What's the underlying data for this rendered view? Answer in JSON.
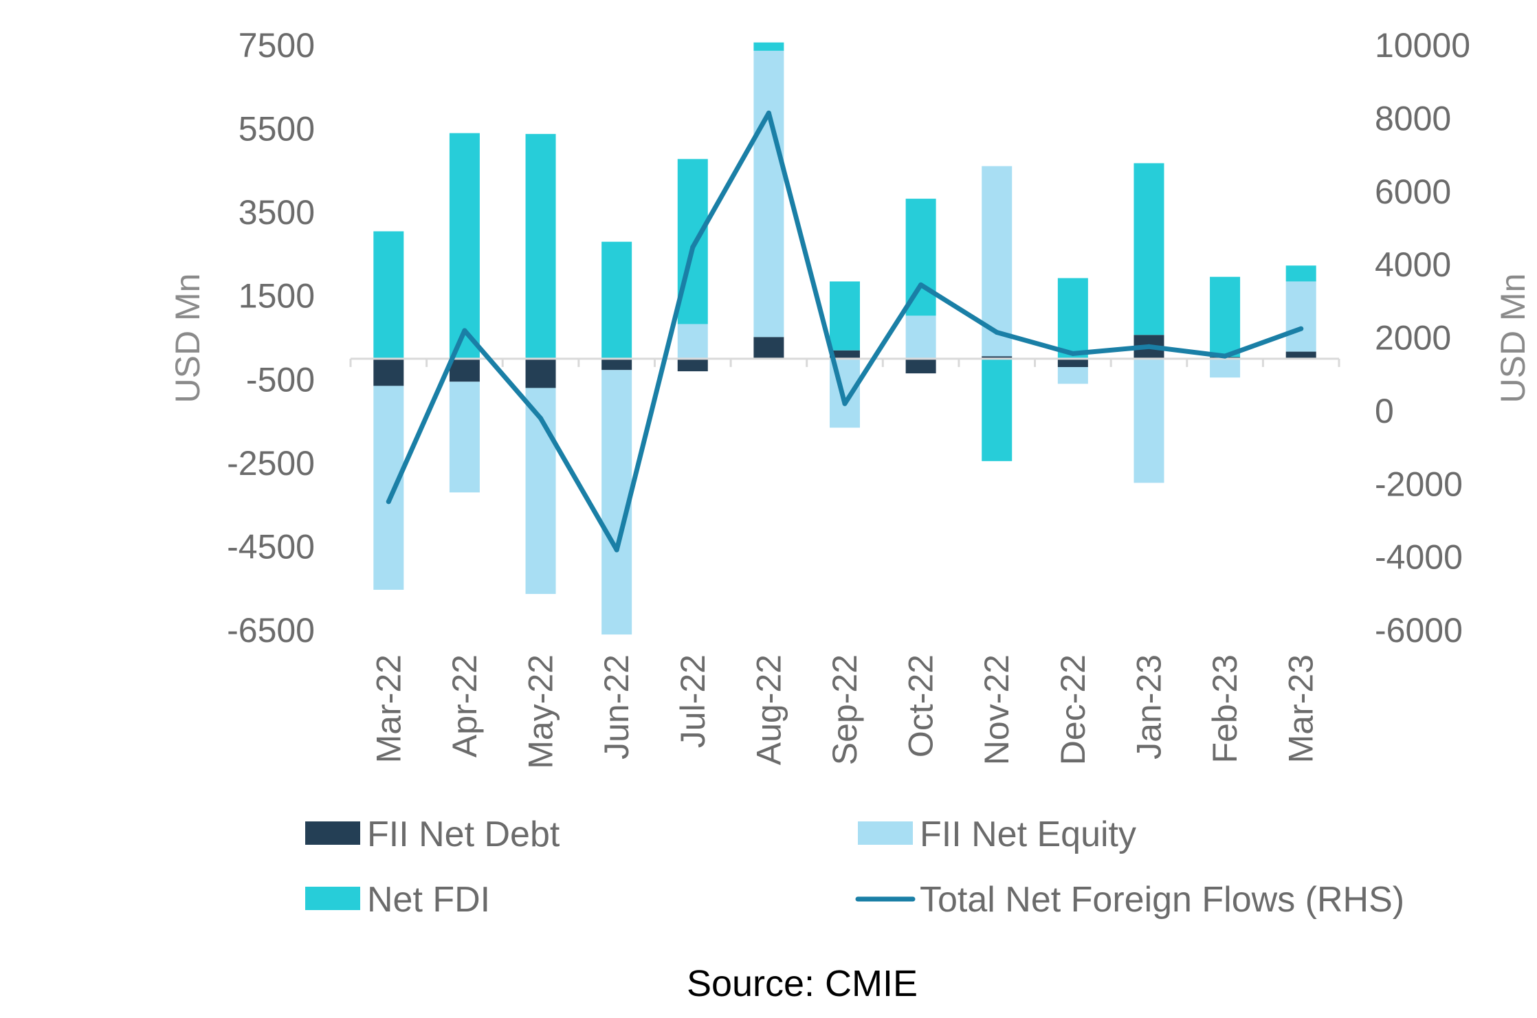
{
  "chart_data": {
    "type": "bar",
    "stacked": true,
    "categories": [
      "Mar-22",
      "Apr-22",
      "May-22",
      "Jun-22",
      "Jul-22",
      "Aug-22",
      "Sep-22",
      "Oct-22",
      "Nov-22",
      "Dec-22",
      "Jan-23",
      "Feb-23",
      "Mar-23"
    ],
    "series": [
      {
        "name": "FII Net Debt",
        "axis": "left",
        "kind": "bar",
        "color": "#243f55",
        "values": [
          -650,
          -550,
          -700,
          -270,
          -300,
          520,
          200,
          -350,
          60,
          -200,
          570,
          40,
          170
        ]
      },
      {
        "name": "FII Net Equity",
        "axis": "left",
        "kind": "bar",
        "color": "#a8def3",
        "values": [
          -4880,
          -2650,
          -4930,
          -6330,
          830,
          6850,
          -1650,
          1030,
          4550,
          -400,
          -2970,
          -450,
          1680
        ]
      },
      {
        "name": "Net FDI",
        "axis": "left",
        "kind": "bar",
        "color": "#27cdd9",
        "values": [
          3050,
          5400,
          5380,
          2800,
          3950,
          200,
          1650,
          2800,
          -2450,
          1930,
          4110,
          1920,
          380
        ]
      },
      {
        "name": "Total Net Foreign Flows (RHS)",
        "axis": "right",
        "kind": "line",
        "color": "#1a7fa6",
        "values": [
          -2480,
          2200,
          -200,
          -3800,
          4480,
          8150,
          200,
          3450,
          2150,
          1570,
          1760,
          1500,
          2250
        ]
      }
    ],
    "y_left": {
      "label": "USD Mn",
      "ticks": [
        7500,
        5500,
        3500,
        1500,
        -500,
        -2500,
        -4500,
        -6500
      ],
      "tick_labels": [
        "7500",
        "5500",
        "3500",
        "1500",
        "-500",
        "-2500",
        "-4500",
        "-6500"
      ],
      "range": [
        -6500,
        7500
      ]
    },
    "y_right": {
      "label": "USD Mn",
      "ticks": [
        10000,
        8000,
        6000,
        4000,
        2000,
        0,
        -2000,
        -4000,
        -6000
      ],
      "tick_labels": [
        "10000",
        "8000",
        "6000",
        "4000",
        "2000",
        "0",
        "-2000",
        "-4000",
        "-6000"
      ],
      "range": [
        -6000,
        10000
      ]
    },
    "legend": {
      "placement": "bottom",
      "items": [
        {
          "label": "FII Net Debt",
          "color": "#243f55",
          "kind": "box"
        },
        {
          "label": "FII Net Equity",
          "color": "#a8def3",
          "kind": "box"
        },
        {
          "label": "Net FDI",
          "color": "#27cdd9",
          "kind": "box"
        },
        {
          "label": "Total Net Foreign Flows (RHS)",
          "color": "#1a7fa6",
          "kind": "line"
        }
      ]
    },
    "source": "Source: CMIE"
  }
}
